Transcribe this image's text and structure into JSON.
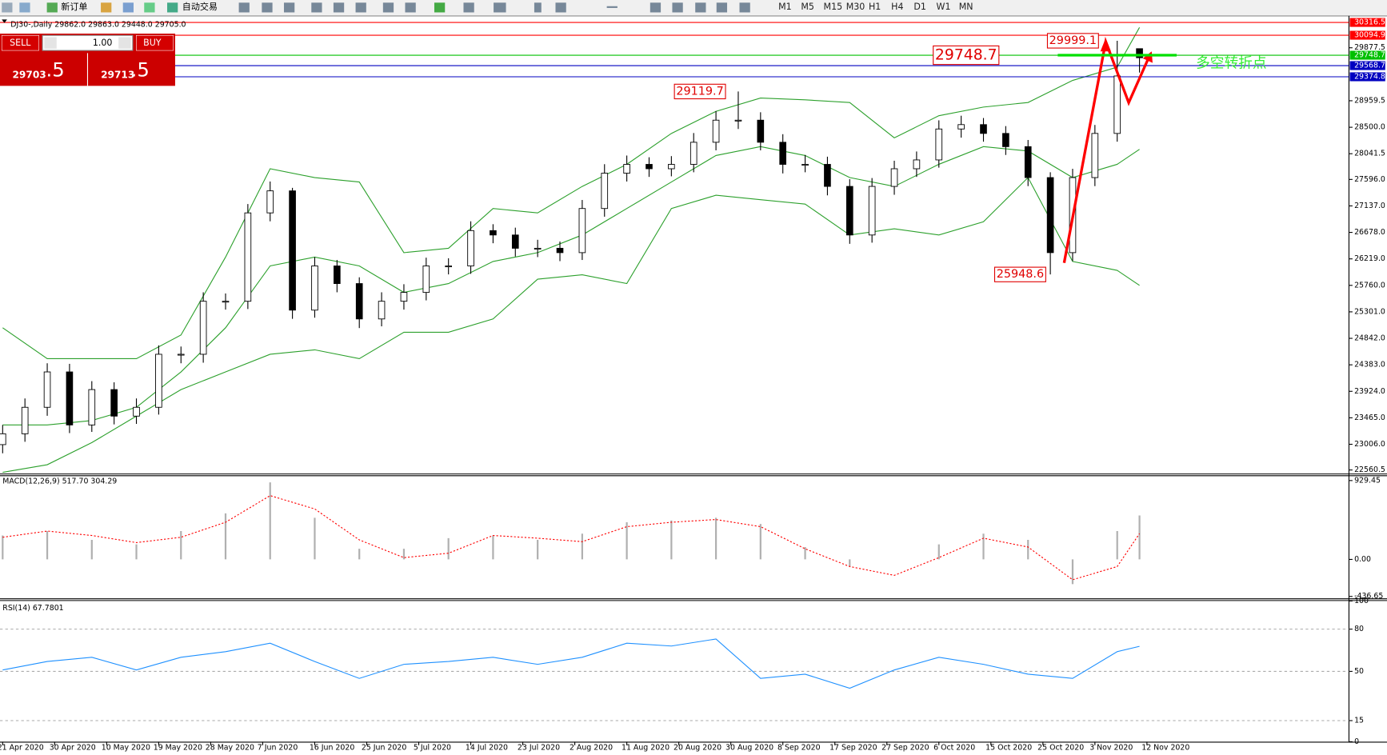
{
  "toolbar": {
    "new_order": "新订单",
    "auto_trading": "自动交易",
    "timeframes": [
      "M1",
      "M5",
      "M15",
      "M30",
      "H1",
      "H4",
      "D1",
      "W1",
      "MN"
    ]
  },
  "trade_panel": {
    "sell": "SELL",
    "lots": "1.00",
    "buy": "BUY",
    "sell_main": "29703",
    "sell_frac": ".5",
    "buy_main": "29713",
    "buy_frac": ".5"
  },
  "chart_data": [
    {
      "type": "candlestick",
      "title": "DJ30-,Daily  29862.0 29863.0 29448.0 29705.0",
      "x": [
        0,
        3,
        6,
        9,
        12,
        15,
        18,
        21,
        24,
        27,
        30,
        33,
        36,
        39,
        42,
        45,
        48,
        51,
        54,
        57,
        60,
        63,
        66,
        69,
        72,
        75,
        78,
        81,
        84,
        87,
        90,
        93,
        96,
        99,
        102,
        105,
        108,
        111,
        114,
        117,
        120,
        123,
        126,
        129,
        132,
        135,
        138,
        141,
        144,
        147,
        150,
        153
      ],
      "open": [
        23000,
        23188,
        23647,
        24260,
        23341,
        23954,
        23494,
        23647,
        24566,
        24566,
        25485,
        25485,
        27016,
        27398,
        25331,
        26097,
        25791,
        25178,
        25485,
        25638,
        26097,
        26097,
        26709,
        26633,
        26403,
        26403,
        26327,
        27092,
        27704,
        27857,
        27781,
        27857,
        28240,
        28623,
        28623,
        28240,
        27857,
        27857,
        27475,
        26633,
        27475,
        27781,
        27934,
        28470,
        28546,
        28393,
        28164,
        27628,
        26327,
        27628,
        28393,
        29862
      ],
      "high": [
        23340,
        23800,
        24410,
        24400,
        24100,
        24080,
        23800,
        24720,
        24700,
        25640,
        25620,
        27170,
        27560,
        27450,
        26250,
        26200,
        25900,
        25640,
        25780,
        26240,
        26230,
        26870,
        26820,
        26760,
        26550,
        26520,
        27240,
        27860,
        28010,
        27980,
        28000,
        28400,
        28780,
        29120,
        28760,
        28380,
        28020,
        27990,
        27600,
        27620,
        27920,
        28080,
        28620,
        28700,
        28660,
        28520,
        28280,
        27720,
        27780,
        28540,
        29999,
        29863
      ],
      "low": [
        22850,
        23050,
        23500,
        23200,
        23220,
        23350,
        23360,
        23520,
        24410,
        24420,
        25340,
        25350,
        26870,
        25180,
        25200,
        25640,
        25020,
        25050,
        25340,
        25500,
        25950,
        25960,
        26490,
        26260,
        26250,
        26180,
        26200,
        26950,
        27560,
        27640,
        27650,
        27720,
        28100,
        28470,
        28100,
        27700,
        27720,
        27320,
        26480,
        26500,
        27330,
        27640,
        27800,
        28320,
        28250,
        28020,
        27480,
        25949,
        26180,
        27480,
        28250,
        29448
      ],
      "close": [
        23188,
        23647,
        24260,
        23341,
        23954,
        23494,
        23647,
        24566,
        24566,
        25485,
        25485,
        27016,
        27398,
        25331,
        26097,
        25791,
        25178,
        25485,
        25638,
        26097,
        26097,
        26709,
        26633,
        26403,
        26403,
        26327,
        27092,
        27704,
        27857,
        27781,
        27857,
        28240,
        28623,
        28623,
        28240,
        27857,
        27857,
        27475,
        26633,
        27475,
        27781,
        27934,
        28470,
        28546,
        28393,
        28164,
        27628,
        26327,
        27628,
        28393,
        29389,
        29705
      ],
      "up_color": "#ffffff",
      "down_color": "#000000",
      "wick_color": "#000000",
      "overlay_x": [
        0,
        6,
        12,
        18,
        24,
        30,
        36,
        42,
        48,
        54,
        60,
        66,
        72,
        78,
        84,
        90,
        96,
        102,
        108,
        114,
        120,
        126,
        132,
        138,
        144,
        150,
        153
      ],
      "overlays": [
        {
          "color": "#2ca02c",
          "values": [
            25025,
            24490,
            24490,
            24490,
            24900,
            26250,
            27781,
            27628,
            27551,
            26327,
            26403,
            27092,
            27016,
            27475,
            27857,
            28393,
            28776,
            29006,
            28975,
            28929,
            28317,
            28700,
            28850,
            28929,
            29312,
            29542,
            30230
          ]
        },
        {
          "color": "#2ca02c",
          "values": [
            23341,
            23341,
            23418,
            23647,
            24260,
            25025,
            26097,
            26250,
            26097,
            25638,
            25791,
            26174,
            26327,
            26633,
            27092,
            27551,
            28011,
            28164,
            28011,
            27628,
            27475,
            27858,
            28164,
            28088,
            27628,
            27858,
            28118
          ]
        },
        {
          "color": "#2ca02c",
          "values": [
            22520,
            22652,
            23035,
            23494,
            23954,
            24260,
            24566,
            24643,
            24490,
            24948,
            24948,
            25178,
            25867,
            25944,
            25791,
            27092,
            27322,
            27245,
            27169,
            26633,
            26740,
            26633,
            26862,
            27628,
            26174,
            26020,
            25760
          ]
        }
      ],
      "xlim": [
        0,
        181
      ],
      "xticks": [
        {
          "value": 0,
          "label": "21 Apr 2020"
        },
        {
          "value": 7,
          "label": "30 Apr 2020"
        },
        {
          "value": 14,
          "label": "10 May 2020"
        },
        {
          "value": 21,
          "label": "19 May 2020"
        },
        {
          "value": 28,
          "label": "28 May 2020"
        },
        {
          "value": 35,
          "label": "7 Jun 2020"
        },
        {
          "value": 42,
          "label": "16 Jun 2020"
        },
        {
          "value": 49,
          "label": "25 Jun 2020"
        },
        {
          "value": 56,
          "label": "5 Jul 2020"
        },
        {
          "value": 63,
          "label": "14 Jul 2020"
        },
        {
          "value": 70,
          "label": "23 Jul 2020"
        },
        {
          "value": 77,
          "label": "2 Aug 2020"
        },
        {
          "value": 84,
          "label": "11 Aug 2020"
        },
        {
          "value": 91,
          "label": "20 Aug 2020"
        },
        {
          "value": 98,
          "label": "30 Aug 2020"
        },
        {
          "value": 105,
          "label": "8 Sep 2020"
        },
        {
          "value": 112,
          "label": "17 Sep 2020"
        },
        {
          "value": 119,
          "label": "27 Sep 2020"
        },
        {
          "value": 126,
          "label": "6 Oct 2020"
        },
        {
          "value": 133,
          "label": "15 Oct 2020"
        },
        {
          "value": 140,
          "label": "25 Oct 2020"
        },
        {
          "value": 147,
          "label": "3 Nov 2020"
        },
        {
          "value": 154,
          "label": "12 Nov 2020"
        }
      ],
      "ylim": [
        22499,
        30414
      ],
      "yticks": [
        22560.5,
        {
          "value": 23006,
          "label": "23006.0"
        },
        {
          "value": 23465,
          "label": "23465.0"
        },
        {
          "value": 23924,
          "label": "23924.0"
        },
        {
          "value": 24383,
          "label": "24383.0"
        },
        {
          "value": 24842,
          "label": "24842.0"
        },
        {
          "value": 25301,
          "label": "25301.0"
        },
        {
          "value": 25760,
          "label": "25760.0"
        },
        {
          "value": 26219,
          "label": "26219.0"
        },
        {
          "value": 26678,
          "label": "26678.0"
        },
        {
          "value": 27137,
          "label": "27137.0"
        },
        {
          "value": 27596,
          "label": "27596.0"
        },
        28041.5,
        {
          "value": 28500,
          "label": "28500.0"
        },
        28959.5,
        29877.5
      ],
      "price_lines": [
        {
          "value": 30316.5,
          "color": "#ff0000"
        },
        {
          "value": 30094.9,
          "color": "#ff0000"
        },
        {
          "value": 29748.7,
          "color": "#00c000"
        },
        {
          "value": 29568.7,
          "color": "#0000c0"
        },
        {
          "value": 29374.8,
          "color": "#0000c0"
        }
      ],
      "annotations": [
        {
          "value": 29999.1,
          "x": 147.6
        },
        {
          "value": 29748.7,
          "x": 134.2
        },
        {
          "value": 29119.7,
          "x": 97.4
        },
        {
          "value": 25948.6,
          "x": 140.5
        }
      ],
      "trend_level": {
        "value": 29748.7,
        "x": [
          142,
          158
        ],
        "color": "#00e000"
      },
      "note": {
        "text": "多空转折点",
        "color": "#33ee33"
      }
    },
    {
      "type": "macd",
      "title": "MACD(12,26,9) 517.70 304.29",
      "x": [
        0,
        6,
        12,
        18,
        24,
        30,
        36,
        42,
        48,
        54,
        60,
        66,
        72,
        78,
        84,
        90,
        96,
        102,
        108,
        114,
        120,
        126,
        132,
        138,
        144,
        150,
        153
      ],
      "histogram": [
        282,
        334,
        230,
        177,
        334,
        543,
        908,
        491,
        125,
        125,
        250,
        282,
        230,
        303,
        438,
        459,
        491,
        418,
        146,
        -84,
        0,
        177,
        303,
        230,
        -292,
        334,
        517.7
      ],
      "signal": [
        261,
        334,
        282,
        198,
        261,
        438,
        752,
        595,
        230,
        21,
        73,
        282,
        250,
        209,
        386,
        438,
        470,
        386,
        125,
        -84,
        -188,
        21,
        250,
        146,
        -240,
        -84,
        304.29
      ],
      "hist_color": "#b0b0b0",
      "signal_color": "#ff0000",
      "ylim": [
        -459,
        981
      ],
      "yticks": [
        929.45,
        {
          "value": 0,
          "label": "0.00"
        },
        -436.65
      ]
    },
    {
      "type": "line",
      "title": "RSI(14) 67.7801",
      "x": [
        0,
        6,
        12,
        18,
        24,
        30,
        36,
        42,
        48,
        54,
        60,
        66,
        72,
        78,
        84,
        90,
        96,
        102,
        108,
        114,
        120,
        126,
        132,
        138,
        144,
        150,
        153
      ],
      "values": [
        51,
        57,
        60,
        51,
        60,
        64,
        70,
        57,
        45,
        55,
        57,
        60,
        55,
        60,
        70,
        68,
        73,
        45,
        48,
        38,
        51,
        60,
        55,
        48,
        45,
        64,
        67.78
      ],
      "color": "#1e90ff",
      "ylim": [
        0,
        100
      ],
      "yticks": [
        100,
        80,
        50,
        15,
        0
      ]
    }
  ]
}
